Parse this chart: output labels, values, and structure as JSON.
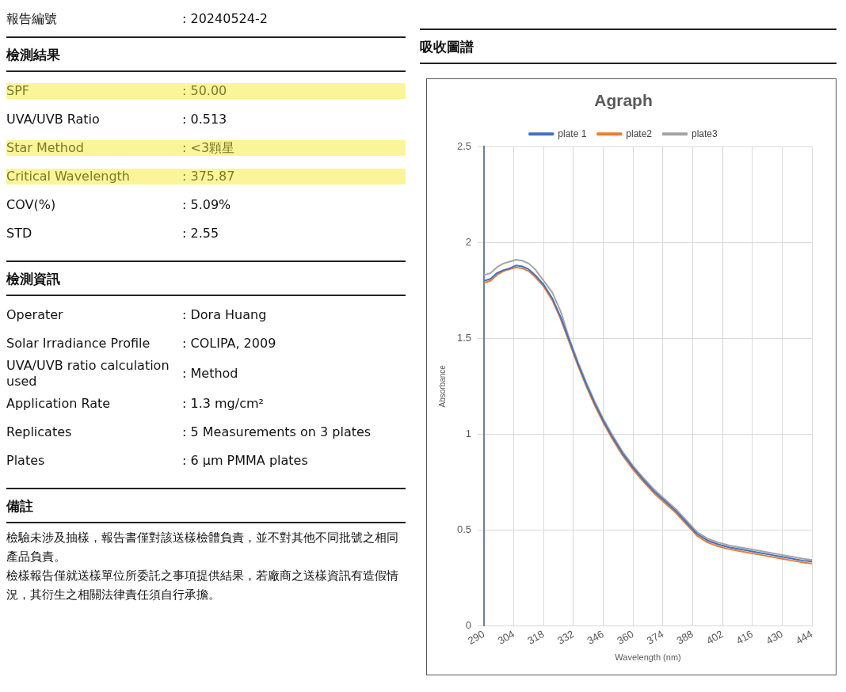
{
  "chart_data": [
    {
      "type": "other",
      "annotations": [
        "報告編號",
        ":  20240524-2",
        "檢測結果",
        "SPF",
        ": 50.00",
        "UVA/UVB Ratio",
        ": 0.513",
        "Star Method",
        ": <3顆星",
        "Critical Wavelength",
        ": 375.87",
        "COV(%)",
        ": 5.09%",
        "STD",
        ": 2.55",
        "檢測資訊",
        "Operater",
        ": Dora Huang",
        "Solar Irradiance Profile",
        ": COLIPA, 2009",
        "UVA/UVB ratio calculation used",
        ": Method",
        "Application Rate",
        ": 1.3 mg/cm²",
        "Replicates",
        ": 5 Measurements on 3 plates",
        "Plates",
        ": 6 µm PMMA plates",
        "備註",
        "檢驗未涉及抽樣，報告書僅對該送樣檢體負責，並不對其他不同批號之相同產品負責。",
        "檢樣報告僅就送樣單位所委託之事項提供結果，若廠商之送樣資訊有造假情況，其衍生之相關法律責任須自行承擔。"
      ]
    },
    {
      "type": "line",
      "title": "吸收圖譜",
      "subtitle": "Agraph",
      "xlabel": "Wavelength (nm)",
      "ylabel": "Absorbance",
      "x": [
        290,
        293,
        296,
        299,
        302,
        305,
        308,
        311,
        314,
        318,
        322,
        326,
        330,
        334,
        338,
        342,
        346,
        350,
        355,
        360,
        365,
        370,
        375,
        380,
        385,
        390,
        395,
        400,
        405,
        410,
        415,
        420,
        425,
        430,
        435,
        440,
        444
      ],
      "series": [
        {
          "name": "plate 1",
          "color": "#4472c4",
          "values": [
            1.8,
            1.81,
            1.84,
            1.855,
            1.865,
            1.88,
            1.875,
            1.86,
            1.83,
            1.78,
            1.71,
            1.61,
            1.49,
            1.37,
            1.26,
            1.16,
            1.07,
            0.99,
            0.9,
            0.825,
            0.76,
            0.7,
            0.65,
            0.6,
            0.54,
            0.48,
            0.445,
            0.425,
            0.41,
            0.4,
            0.39,
            0.38,
            0.37,
            0.36,
            0.35,
            0.34,
            0.335
          ]
        },
        {
          "name": "plate2",
          "color": "#ed7d31",
          "values": [
            1.79,
            1.8,
            1.83,
            1.85,
            1.86,
            1.87,
            1.865,
            1.85,
            1.82,
            1.77,
            1.7,
            1.6,
            1.48,
            1.36,
            1.25,
            1.15,
            1.06,
            0.98,
            0.89,
            0.815,
            0.75,
            0.69,
            0.64,
            0.59,
            0.53,
            0.47,
            0.435,
            0.415,
            0.4,
            0.39,
            0.38,
            0.37,
            0.36,
            0.35,
            0.34,
            0.33,
            0.325
          ]
        },
        {
          "name": "plate3",
          "color": "#a5a5a5",
          "values": [
            1.83,
            1.84,
            1.87,
            1.89,
            1.9,
            1.91,
            1.905,
            1.89,
            1.86,
            1.8,
            1.74,
            1.64,
            1.5,
            1.38,
            1.27,
            1.17,
            1.08,
            1.0,
            0.91,
            0.835,
            0.77,
            0.71,
            0.66,
            0.61,
            0.55,
            0.49,
            0.455,
            0.435,
            0.42,
            0.41,
            0.4,
            0.39,
            0.38,
            0.37,
            0.36,
            0.35,
            0.345
          ]
        }
      ],
      "xlim": [
        290,
        444
      ],
      "xticks": [
        290,
        304,
        318,
        332,
        346,
        360,
        374,
        388,
        402,
        416,
        430,
        444
      ],
      "ylim": [
        0,
        2.5
      ],
      "yticks": [
        0,
        0.5,
        1,
        1.5,
        2,
        2.5
      ],
      "grid": true,
      "legend": "top",
      "marker": "none",
      "line_style": "solid"
    }
  ]
}
